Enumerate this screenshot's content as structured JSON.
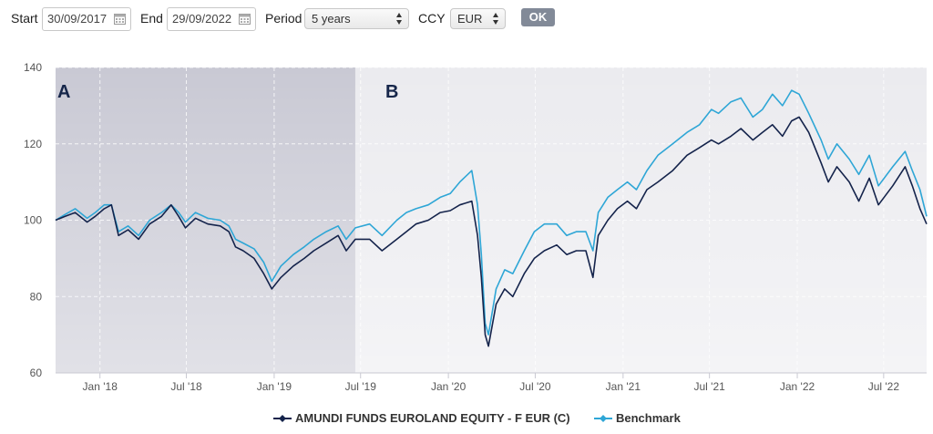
{
  "toolbar": {
    "start_label": "Start",
    "start_value": "30/09/2017",
    "end_label": "End",
    "end_value": "29/09/2022",
    "period_label": "Period",
    "period_value": "5 years",
    "ccy_label": "CCY",
    "ccy_value": "EUR",
    "ok_label": "OK",
    "calendar_icon": "calendar-icon",
    "select_icon": "updown-arrows-icon"
  },
  "chart_data": {
    "type": "line",
    "title": "",
    "xlabel": "",
    "ylabel": "",
    "ylim": [
      60,
      140
    ],
    "yticks": [
      60,
      80,
      100,
      120,
      140
    ],
    "xlim": [
      "2017-09-30",
      "2022-09-29"
    ],
    "xticks": [
      {
        "date": "2018-01-01",
        "label": "Jan '18"
      },
      {
        "date": "2018-07-01",
        "label": "Jul '18"
      },
      {
        "date": "2019-01-01",
        "label": "Jan '19"
      },
      {
        "date": "2019-07-01",
        "label": "Jul '19"
      },
      {
        "date": "2020-01-01",
        "label": "Jan '20"
      },
      {
        "date": "2020-07-01",
        "label": "Jul '20"
      },
      {
        "date": "2021-01-01",
        "label": "Jan '21"
      },
      {
        "date": "2021-07-01",
        "label": "Jul '21"
      },
      {
        "date": "2022-01-01",
        "label": "Jan '22"
      },
      {
        "date": "2022-07-01",
        "label": "Jul '22"
      }
    ],
    "grid": true,
    "legend_position": "bottom-center",
    "regions": [
      {
        "label": "A",
        "start": "2017-09-30",
        "end": "2019-06-20",
        "color": "#c9c9d4"
      },
      {
        "label": "B",
        "start": "2019-06-20",
        "end": "2022-09-29",
        "color": "#ebebef"
      }
    ],
    "series": [
      {
        "name": "AMUNDI FUNDS EUROLAND EQUITY - F EUR (C)",
        "color": "#14234b",
        "x": [
          "2017-09-30",
          "2017-10-20",
          "2017-11-10",
          "2017-12-05",
          "2017-12-22",
          "2018-01-10",
          "2018-01-25",
          "2018-02-09",
          "2018-03-01",
          "2018-03-23",
          "2018-04-15",
          "2018-05-10",
          "2018-05-30",
          "2018-06-15",
          "2018-06-29",
          "2018-07-20",
          "2018-08-15",
          "2018-09-10",
          "2018-09-28",
          "2018-10-12",
          "2018-10-28",
          "2018-11-20",
          "2018-12-10",
          "2018-12-27",
          "2019-01-15",
          "2019-02-10",
          "2019-03-05",
          "2019-03-25",
          "2019-04-20",
          "2019-05-15",
          "2019-06-01",
          "2019-06-20",
          "2019-07-20",
          "2019-08-15",
          "2019-09-15",
          "2019-10-05",
          "2019-10-25",
          "2019-11-20",
          "2019-12-15",
          "2020-01-05",
          "2020-01-25",
          "2020-02-19",
          "2020-03-02",
          "2020-03-10",
          "2020-03-18",
          "2020-03-25",
          "2020-04-10",
          "2020-04-28",
          "2020-05-15",
          "2020-06-08",
          "2020-06-29",
          "2020-07-20",
          "2020-08-15",
          "2020-09-05",
          "2020-09-25",
          "2020-10-15",
          "2020-10-30",
          "2020-11-10",
          "2020-11-30",
          "2020-12-20",
          "2021-01-10",
          "2021-01-29",
          "2021-02-20",
          "2021-03-15",
          "2021-04-15",
          "2021-05-15",
          "2021-06-10",
          "2021-07-05",
          "2021-07-20",
          "2021-08-15",
          "2021-09-05",
          "2021-09-30",
          "2021-10-20",
          "2021-11-10",
          "2021-12-01",
          "2021-12-20",
          "2022-01-05",
          "2022-01-25",
          "2022-02-20",
          "2022-03-07",
          "2022-03-25",
          "2022-04-20",
          "2022-05-10",
          "2022-06-01",
          "2022-06-20",
          "2022-07-20",
          "2022-08-15",
          "2022-08-30",
          "2022-09-15",
          "2022-09-29"
        ],
        "values": [
          100,
          101,
          102,
          99.5,
          101,
          103,
          104,
          96,
          97.5,
          95,
          99,
          101,
          104,
          101,
          98,
          100.5,
          99,
          98.5,
          97,
          93,
          92,
          90,
          86,
          82,
          85,
          88,
          90,
          92,
          94,
          96,
          92,
          95,
          95,
          92,
          95,
          97,
          99,
          100,
          102,
          102.5,
          104,
          105,
          96,
          85,
          70,
          67,
          78,
          82,
          80,
          86,
          90,
          92,
          93.5,
          91,
          92,
          92,
          85,
          96,
          100,
          103,
          105,
          103,
          108,
          110,
          113,
          117,
          119,
          121,
          120,
          122,
          124,
          121,
          123,
          125,
          122,
          126,
          127,
          123,
          115,
          110,
          114,
          110,
          105,
          111,
          104,
          109,
          114,
          109,
          103,
          99
        ]
      },
      {
        "name": "Benchmark",
        "color": "#2ea6d6",
        "x": [
          "2017-09-30",
          "2017-10-20",
          "2017-11-10",
          "2017-12-05",
          "2017-12-22",
          "2018-01-10",
          "2018-01-25",
          "2018-02-09",
          "2018-03-01",
          "2018-03-23",
          "2018-04-15",
          "2018-05-10",
          "2018-05-30",
          "2018-06-15",
          "2018-06-29",
          "2018-07-20",
          "2018-08-15",
          "2018-09-10",
          "2018-09-28",
          "2018-10-12",
          "2018-10-28",
          "2018-11-20",
          "2018-12-10",
          "2018-12-27",
          "2019-01-15",
          "2019-02-10",
          "2019-03-05",
          "2019-03-25",
          "2019-04-20",
          "2019-05-15",
          "2019-06-01",
          "2019-06-20",
          "2019-07-20",
          "2019-08-15",
          "2019-09-15",
          "2019-10-05",
          "2019-10-25",
          "2019-11-20",
          "2019-12-15",
          "2020-01-05",
          "2020-01-25",
          "2020-02-19",
          "2020-03-02",
          "2020-03-10",
          "2020-03-18",
          "2020-03-25",
          "2020-04-10",
          "2020-04-28",
          "2020-05-15",
          "2020-06-08",
          "2020-06-29",
          "2020-07-20",
          "2020-08-15",
          "2020-09-05",
          "2020-09-25",
          "2020-10-15",
          "2020-10-30",
          "2020-11-10",
          "2020-11-30",
          "2020-12-20",
          "2021-01-10",
          "2021-01-29",
          "2021-02-20",
          "2021-03-15",
          "2021-04-15",
          "2021-05-15",
          "2021-06-10",
          "2021-07-05",
          "2021-07-20",
          "2021-08-15",
          "2021-09-05",
          "2021-09-30",
          "2021-10-20",
          "2021-11-10",
          "2021-12-01",
          "2021-12-20",
          "2022-01-05",
          "2022-01-25",
          "2022-02-20",
          "2022-03-07",
          "2022-03-25",
          "2022-04-20",
          "2022-05-10",
          "2022-06-01",
          "2022-06-20",
          "2022-07-20",
          "2022-08-15",
          "2022-08-30",
          "2022-09-15",
          "2022-09-29"
        ],
        "values": [
          100,
          101.5,
          103,
          100.5,
          102,
          104,
          104,
          97,
          98.5,
          96,
          100,
          102,
          104,
          102,
          99.5,
          102,
          100.5,
          100,
          98.5,
          95,
          94,
          92.5,
          89,
          84,
          88,
          91,
          93,
          95,
          97,
          98.5,
          95,
          98,
          99,
          96,
          100,
          102,
          103,
          104,
          106,
          107,
          110,
          113,
          104,
          91,
          73,
          70,
          82,
          87,
          86,
          92,
          97,
          99,
          99,
          96,
          97,
          97,
          92,
          102,
          106,
          108,
          110,
          108,
          113,
          117,
          120,
          123,
          125,
          129,
          128,
          131,
          132,
          127,
          129,
          133,
          130,
          134,
          133,
          128,
          121,
          116,
          120,
          116,
          112,
          117,
          109,
          114,
          118,
          113,
          108,
          101
        ]
      }
    ]
  }
}
